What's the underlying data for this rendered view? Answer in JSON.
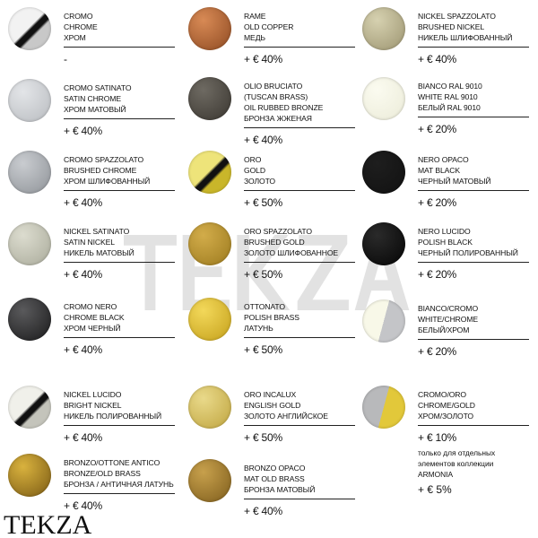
{
  "watermark": "TEKZA",
  "logo": "TEKZA",
  "columns": [
    [
      {
        "names": [
          "CROMO",
          "CHROME",
          "ХРОМ"
        ],
        "price": "-",
        "colors": [
          "#f2f2f2",
          "#c8c8c8"
        ],
        "style": "stripe"
      },
      {
        "names": [
          "CROMO SATINATO",
          "SATIN CHROME",
          "ХРОМ МАТОВЫЙ"
        ],
        "price": "+ € 40%",
        "colors": [
          "#e3e5e8",
          "#b8bbbf"
        ],
        "style": "plain"
      },
      {
        "names": [
          "CROMO SPAZZOLATO",
          "BRUSHED CHROME",
          "ХРОМ ШЛИФОВАННЫЙ"
        ],
        "price": "+ € 40%",
        "colors": [
          "#c9ccd0",
          "#8e9297"
        ],
        "style": "plain"
      },
      {
        "names": [
          "NICKEL SATINATO",
          "SATIN NICKEL",
          "НИКЕЛЬ МАТОВЫЙ"
        ],
        "price": "+ € 40%",
        "colors": [
          "#dcdccf",
          "#a9aa9a"
        ],
        "style": "plain"
      },
      {
        "names": [
          "CROMO NERO",
          "CHROME BLACK",
          "ХРОМ ЧЕРНЫЙ"
        ],
        "price": "+ € 40%",
        "colors": [
          "#5a5a5c",
          "#1a1a1b"
        ],
        "style": "plain"
      },
      {
        "names": [
          "NICKEL LUCIDO",
          "BRIGHT NICKEL",
          "НИКЕЛЬ ПОЛИРОВАННЫЙ"
        ],
        "price": "+ € 40%",
        "colors": [
          "#f0f0ea",
          "#c4c4bb"
        ],
        "style": "stripe"
      },
      {
        "names": [
          "BRONZO/OTTONE ANTICO",
          "BRONZE/OLD BRASS",
          "БРОНЗА / АНТИЧНАЯ ЛАТУНЬ"
        ],
        "price": "+ € 40%",
        "colors": [
          "#d9b23e",
          "#7a5a14"
        ],
        "style": "plain"
      }
    ],
    [
      {
        "names": [
          "RAME",
          "OLD COPPER",
          "МЕДЬ"
        ],
        "price": "+ € 40%",
        "colors": [
          "#d88a55",
          "#8e4a22"
        ],
        "style": "plain"
      },
      {
        "names": [
          "OLIO BRUCIATO",
          "(TUSCAN BRASS)",
          "OIL RUBBED BRONZE",
          "БРОНЗА ЖЖЕНАЯ"
        ],
        "price": "+ € 40%",
        "colors": [
          "#6e6a62",
          "#3a3630"
        ],
        "style": "plain"
      },
      {
        "names": [
          "ORO",
          "GOLD",
          "ЗОЛОТО"
        ],
        "price": "+ € 50%",
        "colors": [
          "#eee47a",
          "#c9b62a"
        ],
        "style": "stripe"
      },
      {
        "names": [
          "ORO SPAZZOLATO",
          "BRUSHED GOLD",
          "ЗОЛОТО ШЛИФОВАННОЕ"
        ],
        "price": "+ € 50%",
        "colors": [
          "#d2ac4a",
          "#9c7a1e"
        ],
        "style": "plain"
      },
      {
        "names": [
          "OTTONATO",
          "POLISH BRASS",
          "ЛАТУНЬ"
        ],
        "price": "+ € 50%",
        "colors": [
          "#f3d85a",
          "#c4a01a"
        ],
        "style": "plain"
      },
      {
        "names": [
          "ORO INCALUX",
          "ENGLISH GOLD",
          "ЗОЛОТО АНГЛИЙСКОЕ"
        ],
        "price": "+ € 50%",
        "colors": [
          "#e9d98a",
          "#bfa43e"
        ],
        "style": "plain"
      },
      {
        "names": [
          "BRONZO OPACO",
          "MAT OLD BRASS",
          "БРОНЗА МАТОВЫЙ"
        ],
        "price": "+ € 40%",
        "colors": [
          "#c7a04c",
          "#7e5d1c"
        ],
        "style": "plain"
      }
    ],
    [
      {
        "names": [
          "NICKEL SPAZZOLATO",
          "BRUSHED NICKEL",
          "НИКЕЛЬ ШЛИФОВАННЫЙ"
        ],
        "price": "+ € 40%",
        "colors": [
          "#d6d1b0",
          "#9c9470"
        ],
        "style": "plain"
      },
      {
        "names": [
          "BIANCO RAL 9010",
          "WHITE RAL 9010",
          "БЕЛЫЙ RAL 9010"
        ],
        "price": "+ € 20%",
        "colors": [
          "#fbfbf0",
          "#ebebd8"
        ],
        "style": "plain"
      },
      {
        "names": [
          "NERO OPACO",
          "MAT BLACK",
          "ЧЕРНЫЙ МАТОВЫЙ"
        ],
        "price": "+ € 20%",
        "colors": [
          "#1e1e1e",
          "#111111"
        ],
        "style": "plain"
      },
      {
        "names": [
          "NERO LUCIDO",
          "POLISH BLACK",
          "ЧЕРНЫЙ ПОЛИРОВАННЫЙ"
        ],
        "price": "+ € 20%",
        "colors": [
          "#2a2a2a",
          "#050505"
        ],
        "style": "plain"
      },
      {
        "names": [
          "BIANCO/CROMO",
          "WHITE/CHROME",
          "БЕЛЫЙ/ХРОМ"
        ],
        "price": "+ € 20%",
        "colors": [
          "#f8f8e8",
          "#c4c5c8"
        ],
        "style": "split"
      },
      {
        "names": [
          "CROMO/ORO",
          "CHROME/GOLD",
          "ХРОМ/ЗОЛОТО"
        ],
        "price": "+ € 10%",
        "colors": [
          "#b8b9bb",
          "#e2c83a"
        ],
        "style": "split",
        "note": [
          "только для отдельных",
          "элементов коллекции",
          "ARMONIA"
        ],
        "note_price": "+ € 5%"
      }
    ]
  ]
}
